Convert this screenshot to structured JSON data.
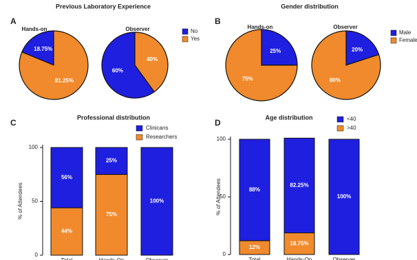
{
  "chart_data": [
    {
      "type": "pie",
      "panel": "A",
      "title": "Previous Laboratory Experience",
      "direction": "counterclockwise",
      "categories": [
        "No",
        "Yes"
      ],
      "colors": [
        "#1f1fe0",
        "#f08a2c"
      ],
      "pies": [
        {
          "name": "Hands-on",
          "values": [
            18.75,
            81.25
          ],
          "value_labels": [
            "18.75%",
            "81.25%"
          ]
        },
        {
          "name": "Observer",
          "values": [
            60,
            40
          ],
          "value_labels": [
            "60%",
            "40%"
          ]
        }
      ]
    },
    {
      "type": "pie",
      "panel": "B",
      "title": "Gender distribution",
      "direction": "clockwise",
      "categories": [
        "Male",
        "Female"
      ],
      "colors": [
        "#1f1fe0",
        "#f08a2c"
      ],
      "pies": [
        {
          "name": "Hands-on",
          "values": [
            25,
            75
          ],
          "value_labels": [
            "25%",
            "75%"
          ]
        },
        {
          "name": "Observer",
          "values": [
            20,
            80
          ],
          "value_labels": [
            "20%",
            "80%"
          ]
        }
      ]
    },
    {
      "type": "stacked_bar",
      "panel": "C",
      "title": "Professional distribution",
      "y_label": "% of Attendees",
      "categories": [
        "Total",
        "Hands-On",
        "Observer"
      ],
      "ylim": [
        0,
        100
      ],
      "yticks": [
        0,
        50,
        100
      ],
      "series": [
        {
          "name": "Researchers",
          "color": "#f08a2c",
          "values": [
            44,
            75,
            0
          ],
          "value_labels": [
            "44%",
            "75%",
            null
          ]
        },
        {
          "name": "Clinicans",
          "color": "#1f1fe0",
          "values": [
            56,
            25,
            100
          ],
          "value_labels": [
            "56%",
            "25%",
            "100%"
          ]
        }
      ]
    },
    {
      "type": "stacked_bar",
      "panel": "D",
      "title": "Age distribution",
      "y_label": "% of Attendees",
      "categories": [
        "Total",
        "Hands-On",
        "Observer"
      ],
      "ylim": [
        0,
        100
      ],
      "yticks": [
        0,
        50,
        100
      ],
      "series": [
        {
          "name": ">40",
          "color": "#f08a2c",
          "values": [
            12,
            18.75,
            0
          ],
          "value_labels": [
            "12%",
            "18.75%",
            null
          ]
        },
        {
          "name": "<40",
          "color": "#1f1fe0",
          "values": [
            88,
            82.25,
            100
          ],
          "value_labels": [
            "88%",
            "82.25%",
            "100%"
          ]
        }
      ]
    }
  ]
}
